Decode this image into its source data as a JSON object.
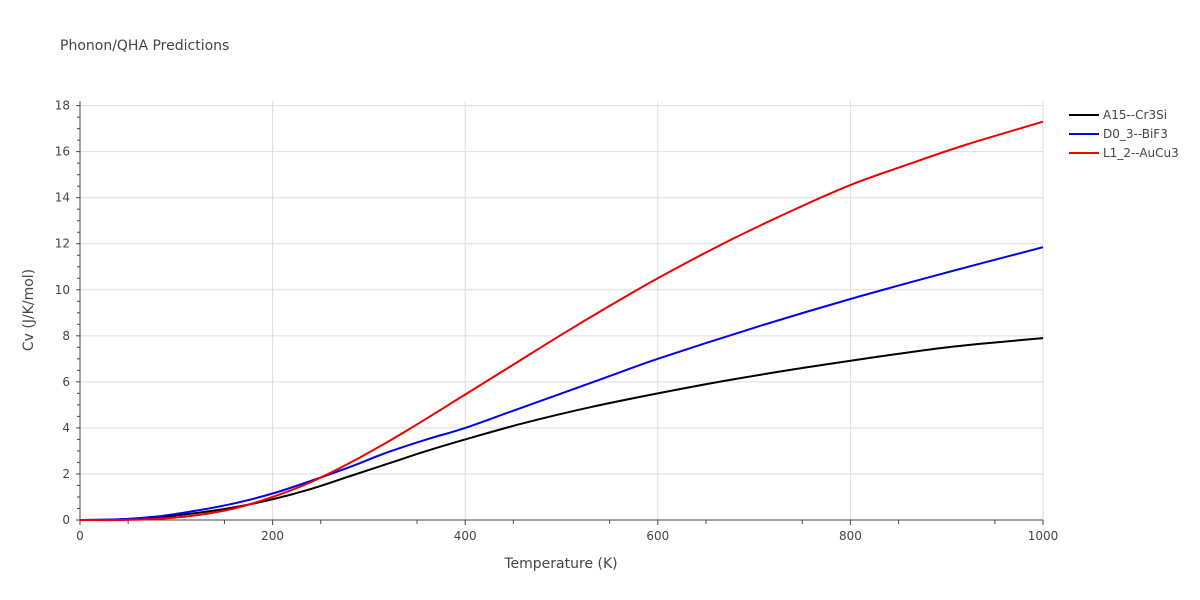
{
  "chart_data": {
    "type": "line",
    "title": "Phonon/QHA Predictions",
    "xlabel": "Temperature (K)",
    "ylabel": "Cv (J/K/mol)",
    "xlim": [
      0,
      1000
    ],
    "ylim": [
      0,
      18.2
    ],
    "xticks": [
      0,
      200,
      400,
      600,
      800,
      1000
    ],
    "yticks": [
      0,
      2,
      4,
      6,
      8,
      10,
      12,
      14,
      16,
      18
    ],
    "grid": true,
    "legend_position": "top-right",
    "series": [
      {
        "name": "A15--Cr3Si",
        "color": "#000000",
        "x": [
          0,
          40,
          80,
          120,
          160,
          200,
          240,
          280,
          320,
          360,
          400,
          460,
          530,
          600,
          670,
          750,
          830,
          900,
          960,
          1000
        ],
        "y": [
          0,
          0.02,
          0.12,
          0.3,
          0.55,
          0.9,
          1.35,
          1.9,
          2.45,
          3.0,
          3.5,
          4.2,
          4.9,
          5.5,
          6.05,
          6.6,
          7.1,
          7.5,
          7.75,
          7.9
        ]
      },
      {
        "name": "D0_3--BiF3",
        "color": "#0000ee",
        "x": [
          0,
          40,
          80,
          120,
          160,
          200,
          240,
          280,
          320,
          360,
          400,
          450,
          500,
          550,
          600,
          700,
          800,
          900,
          1000
        ],
        "y": [
          0,
          0.03,
          0.15,
          0.4,
          0.72,
          1.15,
          1.7,
          2.3,
          2.95,
          3.5,
          4.0,
          4.75,
          5.5,
          6.25,
          7.0,
          8.35,
          9.6,
          10.75,
          11.85
        ]
      },
      {
        "name": "L1_2--AuCu3",
        "color": "#ee0000",
        "x": [
          0,
          40,
          80,
          120,
          160,
          200,
          240,
          290,
          340,
          400,
          450,
          500,
          550,
          600,
          670,
          740,
          800,
          860,
          920,
          1000
        ],
        "y": [
          0,
          0.0,
          0.05,
          0.2,
          0.5,
          1.0,
          1.65,
          2.7,
          3.9,
          5.45,
          6.75,
          8.05,
          9.3,
          10.5,
          12.05,
          13.45,
          14.55,
          15.45,
          16.3,
          17.3
        ]
      }
    ]
  }
}
